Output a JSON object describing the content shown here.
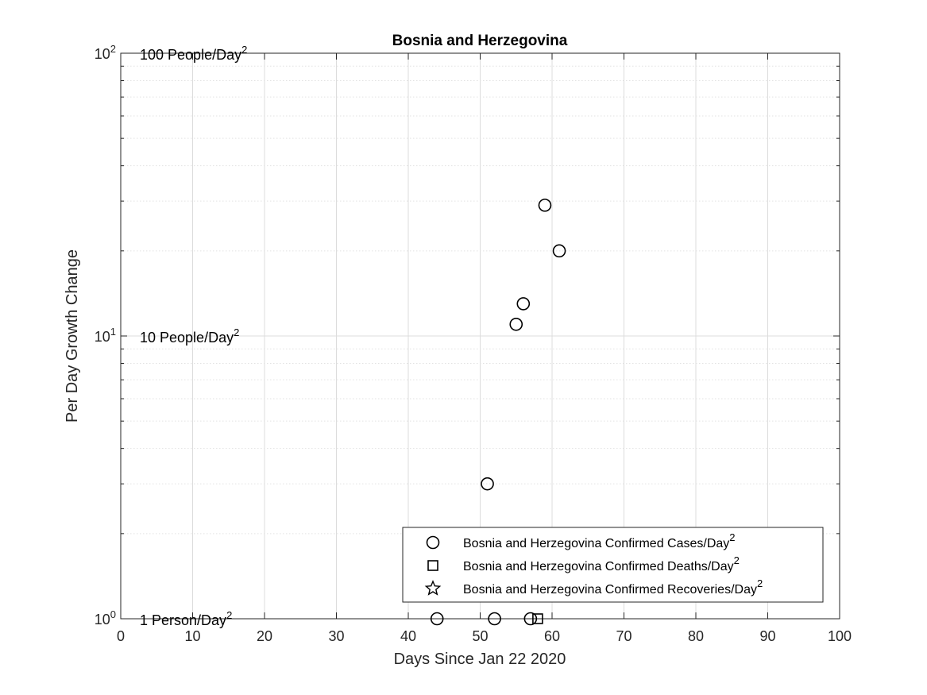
{
  "chart_data": {
    "type": "scatter",
    "title": "Bosnia and Herzegovina",
    "xlabel": "Days Since Jan 22 2020",
    "ylabel": "Per Day Growth Change",
    "xlim": [
      0,
      100
    ],
    "ylim": [
      1,
      100
    ],
    "y_scale": "log",
    "grid": true,
    "x_ticks": [
      "0",
      "10",
      "20",
      "30",
      "40",
      "50",
      "60",
      "70",
      "80",
      "90",
      "100"
    ],
    "y_ticks": [
      {
        "base": "10",
        "exp": "0",
        "value": 1
      },
      {
        "base": "10",
        "exp": "1",
        "value": 10
      },
      {
        "base": "10",
        "exp": "2",
        "value": 100
      }
    ],
    "annotations": [
      {
        "text": "1 Person/Day",
        "sup": "2",
        "y": 1
      },
      {
        "text": "10 People/Day",
        "sup": "2",
        "y": 10
      },
      {
        "text": "100 People/Day",
        "sup": "2",
        "y": 100
      }
    ],
    "series": [
      {
        "name": "Bosnia and Herzegovina Confirmed Cases/Day",
        "name_sup": "2",
        "marker": "circle",
        "points": [
          {
            "x": 44,
            "y": 1
          },
          {
            "x": 52,
            "y": 1
          },
          {
            "x": 57,
            "y": 1
          },
          {
            "x": 51,
            "y": 3
          },
          {
            "x": 55,
            "y": 11
          },
          {
            "x": 56,
            "y": 13
          },
          {
            "x": 59,
            "y": 29
          },
          {
            "x": 61,
            "y": 20
          }
        ]
      },
      {
        "name": "Bosnia and Herzegovina Confirmed Deaths/Day",
        "name_sup": "2",
        "marker": "square",
        "points": [
          {
            "x": 58,
            "y": 1
          }
        ]
      },
      {
        "name": "Bosnia and Herzegovina Confirmed Recoveries/Day",
        "name_sup": "2",
        "marker": "star",
        "points": []
      }
    ],
    "legend_position": "bottom-right"
  }
}
